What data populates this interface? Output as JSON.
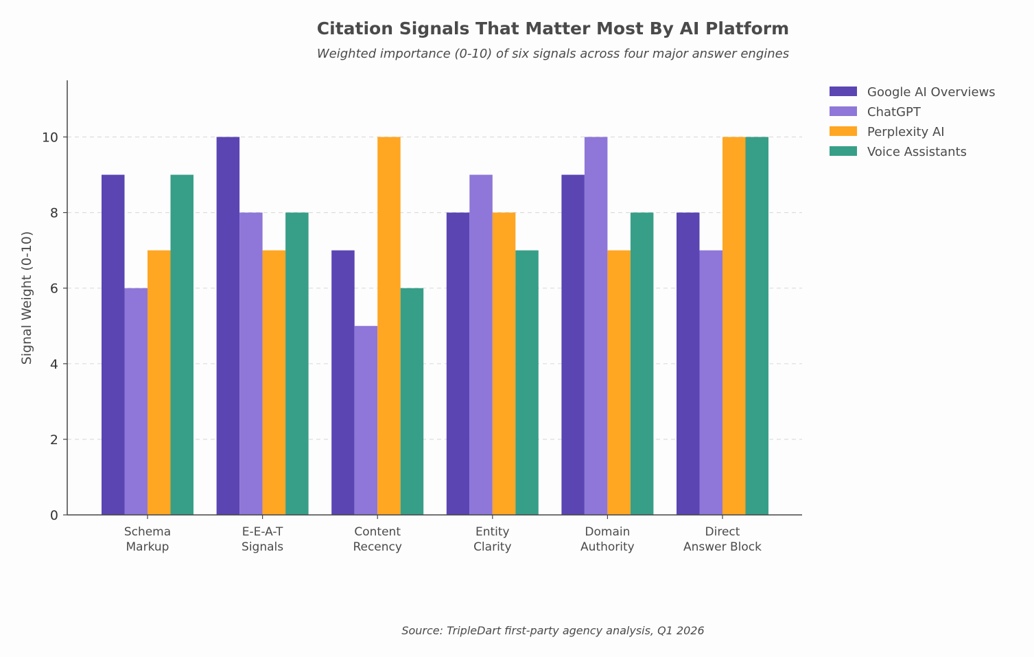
{
  "chart_data": {
    "type": "bar",
    "title": "Citation Signals That Matter Most By AI Platform",
    "subtitle": "Weighted importance (0-10) of six signals across four major answer engines",
    "xlabel": "",
    "ylabel": "Signal Weight (0-10)",
    "ylim": [
      0,
      11.5
    ],
    "yticks": [
      0,
      2,
      4,
      6,
      8,
      10
    ],
    "grid": "horizontal dashed",
    "legend_position": "top-right outside plot",
    "categories": [
      [
        "Schema",
        "Markup"
      ],
      [
        "E-E-A-T",
        "Signals"
      ],
      [
        "Content",
        "Recency"
      ],
      [
        "Entity",
        "Clarity"
      ],
      [
        "Domain",
        "Authority"
      ],
      [
        "Direct",
        "Answer Block"
      ]
    ],
    "series": [
      {
        "name": "Google AI Overviews",
        "color": "#5b45b3",
        "values": [
          9,
          10,
          7,
          8,
          9,
          8
        ]
      },
      {
        "name": "ChatGPT",
        "color": "#8e77d8",
        "values": [
          6,
          8,
          5,
          9,
          10,
          7
        ]
      },
      {
        "name": "Perplexity AI",
        "color": "#ffa622",
        "values": [
          7,
          7,
          10,
          8,
          7,
          10
        ]
      },
      {
        "name": "Voice Assistants",
        "color": "#379f87",
        "values": [
          9,
          8,
          6,
          7,
          8,
          10
        ]
      }
    ],
    "source": "Source: TripleDart first-party agency analysis, Q1 2026"
  }
}
